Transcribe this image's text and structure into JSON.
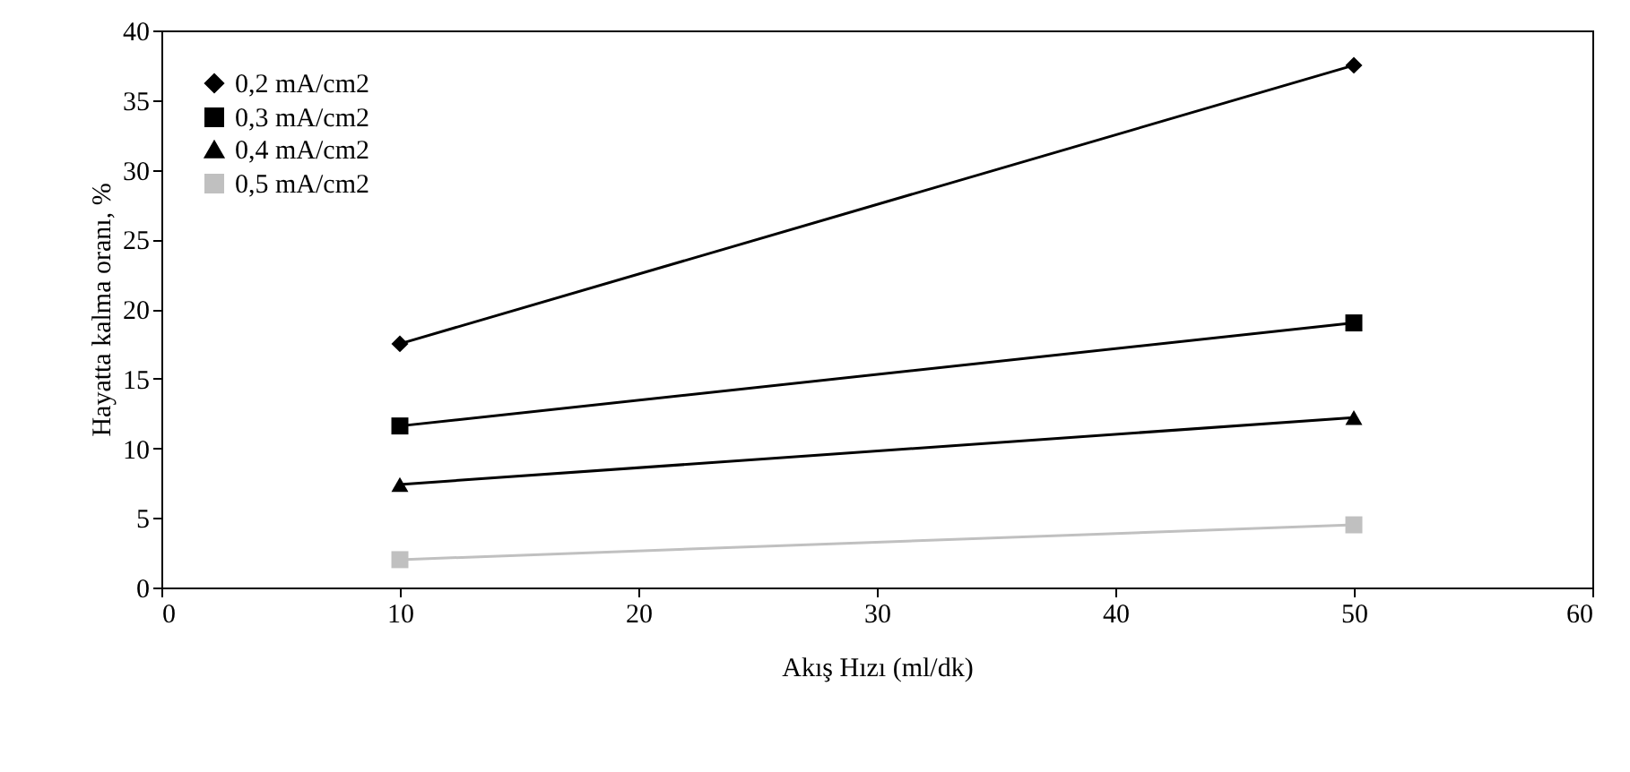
{
  "chart_data": {
    "type": "line",
    "xlabel": "Akış Hızı (ml/dk)",
    "ylabel": "Hayatta kalma oranı, %",
    "x": [
      10,
      50
    ],
    "series": [
      {
        "name": "0,2 mA/cm2",
        "color": "#000000",
        "marker": "diamond",
        "values": [
          17.5,
          37.5
        ]
      },
      {
        "name": "0,3 mA/cm2",
        "color": "#000000",
        "marker": "square",
        "values": [
          11.6,
          19.0
        ]
      },
      {
        "name": "0,4 mA/cm2",
        "color": "#000000",
        "marker": "triangle",
        "values": [
          7.4,
          12.2
        ]
      },
      {
        "name": "0,5 mA/cm2",
        "color": "#c0c0c0",
        "marker": "square",
        "values": [
          2.0,
          4.5
        ]
      }
    ],
    "xlim": [
      0,
      60
    ],
    "xticks": [
      0,
      10,
      20,
      30,
      40,
      50,
      60
    ],
    "ylim": [
      0,
      40
    ],
    "yticks": [
      0,
      5,
      10,
      15,
      20,
      25,
      30,
      35,
      40
    ],
    "grid": false,
    "legend": "top left"
  }
}
